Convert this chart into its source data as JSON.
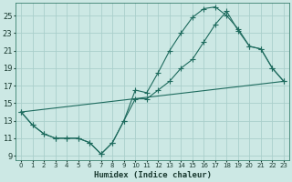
{
  "xlabel": "Humidex (Indice chaleur)",
  "bg_color": "#cce8e4",
  "grid_color": "#aacfcb",
  "line_color": "#1e6b5e",
  "xlim": [
    -0.5,
    23.5
  ],
  "ylim": [
    8.5,
    26.5
  ],
  "yticks": [
    9,
    11,
    13,
    15,
    17,
    19,
    21,
    23,
    25
  ],
  "xticks": [
    0,
    1,
    2,
    3,
    4,
    5,
    6,
    7,
    8,
    9,
    10,
    11,
    12,
    13,
    14,
    15,
    16,
    17,
    18,
    19,
    20,
    21,
    22,
    23
  ],
  "line1_x": [
    0,
    1,
    2,
    3,
    4,
    5,
    6,
    7,
    8,
    9,
    10,
    11,
    12,
    13,
    14,
    15,
    16,
    17,
    18,
    19,
    20,
    21,
    22,
    23
  ],
  "line1_y": [
    14.0,
    12.5,
    11.5,
    11.0,
    11.0,
    11.0,
    10.5,
    9.2,
    10.5,
    13.0,
    16.5,
    16.2,
    18.5,
    21.0,
    23.0,
    24.8,
    25.8,
    26.0,
    25.0,
    23.5,
    21.5,
    21.2,
    19.0,
    17.5
  ],
  "line2_x": [
    0,
    1,
    2,
    3,
    4,
    5,
    6,
    7,
    8,
    9,
    10,
    11,
    12,
    13,
    14,
    15,
    16,
    17,
    18,
    19,
    20,
    21,
    22,
    23
  ],
  "line2_y": [
    14.0,
    12.5,
    11.5,
    11.0,
    11.0,
    11.0,
    10.5,
    9.2,
    10.5,
    13.0,
    15.5,
    15.5,
    16.5,
    17.5,
    19.0,
    20.0,
    22.0,
    24.0,
    25.5,
    23.3,
    21.5,
    21.2,
    19.0,
    17.5
  ],
  "line3_x": [
    0,
    23
  ],
  "line3_y": [
    14.0,
    17.5
  ]
}
